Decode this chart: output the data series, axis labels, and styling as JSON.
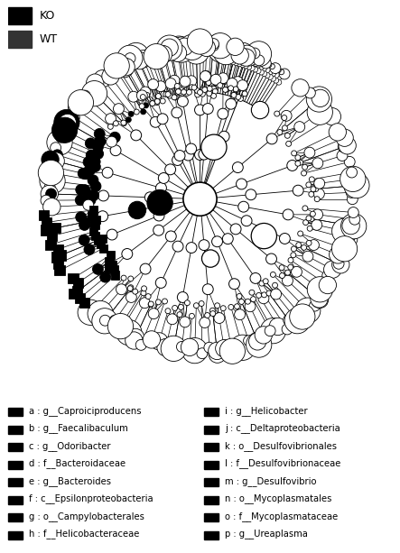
{
  "legend_top": [
    {
      "label": "KO",
      "color": "#000000"
    },
    {
      "label": "WT",
      "color": "#000000"
    }
  ],
  "legend_bottom": [
    {
      "key": "a",
      "label": "g__Caproiciproducens",
      "color": "#000000"
    },
    {
      "key": "b",
      "label": "g__Faecalibaculum",
      "color": "#000000"
    },
    {
      "key": "c",
      "label": "g__Odoribacter",
      "color": "#000000"
    },
    {
      "key": "d",
      "label": "f__Bacteroidaceae",
      "color": "#000000"
    },
    {
      "key": "e",
      "label": "g__Bacteroides",
      "color": "#000000"
    },
    {
      "key": "f",
      "label": "c__Epsilonproteobacteria",
      "color": "#000000"
    },
    {
      "key": "g",
      "label": "o__Campylobacterales",
      "color": "#000000"
    },
    {
      "key": "h",
      "label": "f__Helicobacteraceae",
      "color": "#000000"
    },
    {
      "key": "i",
      "label": "g__Helicobacter",
      "color": "#000000"
    },
    {
      "key": "j",
      "label": "c__Deltaproteobacteria",
      "color": "#000000"
    },
    {
      "key": "k",
      "label": "o__Desulfovibrionales",
      "color": "#000000"
    },
    {
      "key": "l",
      "label": "f__Desulfovibrionaceae",
      "color": "#000000"
    },
    {
      "key": "m",
      "label": "g__Desulfovibrio",
      "color": "#000000"
    },
    {
      "key": "n",
      "label": "o__Mycoplasmatales",
      "color": "#000000"
    },
    {
      "key": "o",
      "label": "f__Mycoplasmataceae",
      "color": "#000000"
    },
    {
      "key": "p",
      "label": "g__Ureaplasma",
      "color": "#000000"
    }
  ],
  "background_color": "#ffffff",
  "edge_color": "#000000"
}
